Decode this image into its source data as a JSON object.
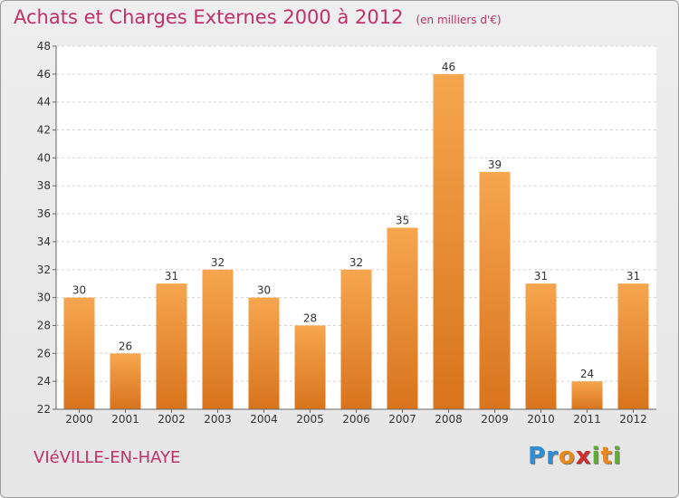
{
  "header": {
    "title": "Achats et Charges Externes 2000 à 2012",
    "unit": "(en milliers d'€)"
  },
  "footer": {
    "location": "VIéVILLE-EN-HAYE",
    "logo_letters": [
      "P",
      "r",
      "o",
      "x",
      "i",
      "t",
      "i"
    ],
    "logo_colors": [
      "#2e8fd6",
      "#2e8fd6",
      "#e8891e",
      "#d12b2b",
      "#5fae2e",
      "#e8891e",
      "#5fae2e"
    ]
  },
  "chart_data": {
    "type": "bar",
    "categories": [
      "2000",
      "2001",
      "2002",
      "2003",
      "2004",
      "2005",
      "2006",
      "2007",
      "2008",
      "2009",
      "2010",
      "2011",
      "2012"
    ],
    "values": [
      30,
      26,
      31,
      32,
      30,
      28,
      32,
      35,
      46,
      39,
      31,
      24,
      31
    ],
    "ylim": [
      22,
      48
    ],
    "yticks": [
      22,
      24,
      26,
      28,
      30,
      32,
      34,
      36,
      38,
      40,
      42,
      44,
      46,
      48
    ],
    "grid": true,
    "bar_color_top": "#f6a64f",
    "bar_color_bottom": "#d8741c"
  }
}
